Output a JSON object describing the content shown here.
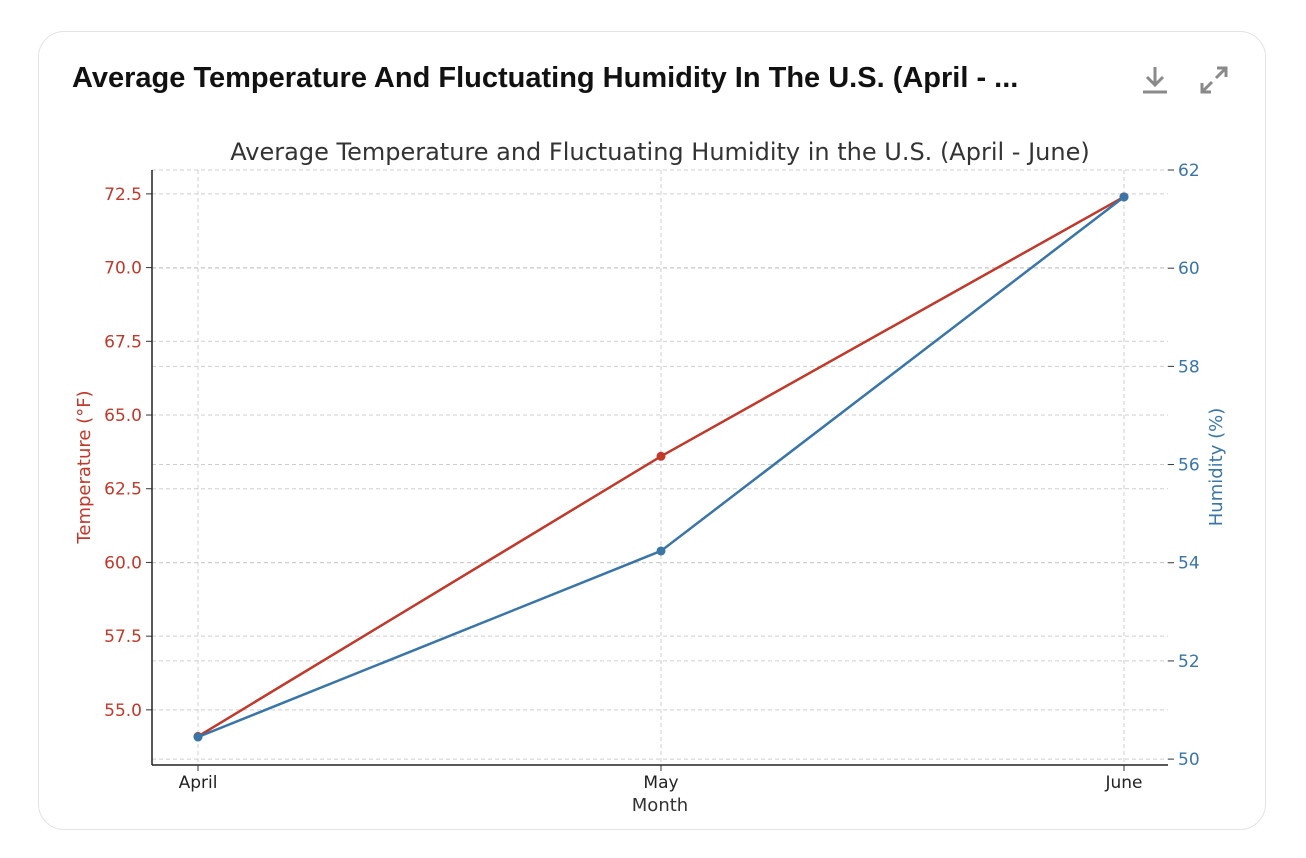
{
  "header": {
    "title": "Average Temperature And Fluctuating Humidity In The U.S. (April - ...",
    "download_icon": "download-icon",
    "expand_icon": "expand-icon"
  },
  "chart_data": {
    "type": "line",
    "title": "Average Temperature and Fluctuating Humidity in the U.S. (April - June)",
    "xlabel": "Month",
    "categories": [
      "April",
      "May",
      "June"
    ],
    "y_left": {
      "label": "Temperature (°F)",
      "range": [
        53.13,
        73.31
      ],
      "ticks": [
        "55.0",
        "57.5",
        "60.0",
        "62.5",
        "65.0",
        "67.5",
        "70.0",
        "72.5"
      ],
      "color": "#c0392b"
    },
    "y_right": {
      "label": "Humidity (%)",
      "range": [
        49.88,
        62.0
      ],
      "ticks": [
        "50",
        "52",
        "54",
        "56",
        "58",
        "60",
        "62"
      ],
      "color": "#3a75a8"
    },
    "series": [
      {
        "name": "Temperature (°F)",
        "axis": "left",
        "values": [
          54.1,
          63.6,
          72.4
        ],
        "color": "#c0392b"
      },
      {
        "name": "Humidity (%)",
        "axis": "right",
        "values": [
          50.45,
          54.24,
          61.45
        ],
        "color": "#3a75a8"
      }
    ],
    "grid": true
  }
}
